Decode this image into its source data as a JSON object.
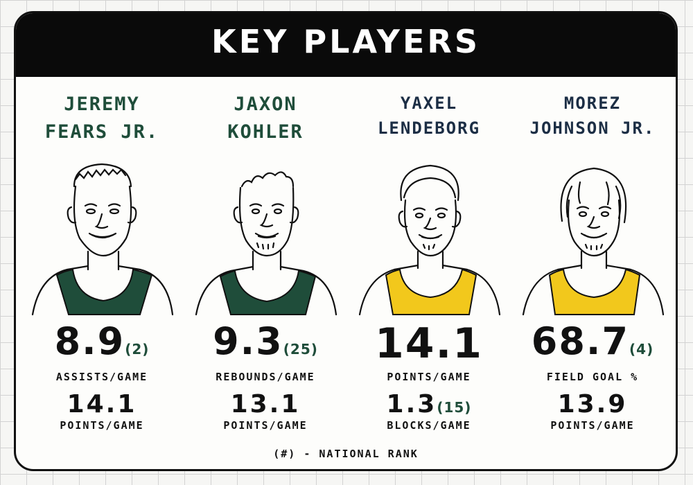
{
  "title": "KEY PLAYERS",
  "footnote": "(#) - NATIONAL RANK",
  "colors": {
    "msu_green": "#1f4d3a",
    "gold": "#f2c81c",
    "navy": "#1c2e45",
    "banner": "#0a0a0a"
  },
  "players": [
    {
      "name": "JEREMY\nFEARS JR.",
      "jersey_color": "#1f4d3a",
      "stat1_value": "8.9",
      "stat1_rank": "(2)",
      "stat1_label": "ASSISTS/GAME",
      "stat2_value": "14.1",
      "stat2_label": "POINTS/GAME"
    },
    {
      "name": "JAXON\nKOHLER",
      "jersey_color": "#1f4d3a",
      "stat1_value": "9.3",
      "stat1_rank": "(25)",
      "stat1_label": "REBOUNDS/GAME",
      "stat2_value": "13.1",
      "stat2_label": "POINTS/GAME"
    },
    {
      "name": "YAXEL\nLENDEBORG",
      "jersey_color": "#f2c81c",
      "stat1_value": "14.1",
      "stat1_rank": "",
      "stat1_label": "POINTS/GAME",
      "stat2_value": "1.3",
      "stat2_rank": "(15)",
      "stat2_label": "BLOCKS/GAME"
    },
    {
      "name": "MOREZ\nJOHNSON JR.",
      "jersey_color": "#f2c81c",
      "stat1_value": "68.7",
      "stat1_rank": "(4)",
      "stat1_label": "FIELD GOAL %",
      "stat2_value": "13.9",
      "stat2_label": "POINTS/GAME"
    }
  ]
}
